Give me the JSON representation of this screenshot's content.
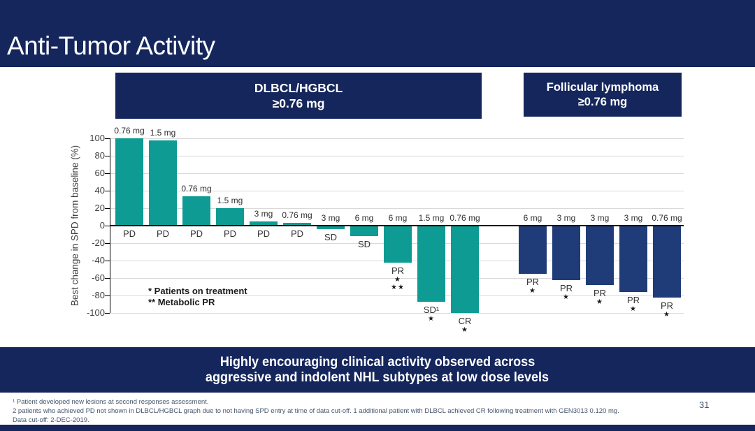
{
  "slide": {
    "title": "Anti-Tumor Activity",
    "page_number": "31"
  },
  "group_headers": [
    {
      "line1": "DLBCL/HGBCL",
      "line2": "≥0.76 mg"
    },
    {
      "line1": "Follicular lymphoma",
      "line2": "≥0.76 mg"
    }
  ],
  "legend": {
    "line1": "* Patients on treatment",
    "line2": "** Metabolic PR"
  },
  "banner": {
    "line1": "Highly encouraging clinical activity observed across",
    "line2": "aggressive and indolent NHL subtypes at low dose levels"
  },
  "footnotes": [
    "¹ Patient developed new lesions at second responses assessment.",
    "2 patients who achieved PD not shown in DLBCL/HGBCL graph due to not having SPD entry at time of data cut-off. 1 additional patient with DLBCL achieved CR following treatment with GEN3013 0.120 mg.",
    "Data cut-off: 2-DEC-2019."
  ],
  "colors": {
    "navy": "#15265C",
    "teal_bar": "#0D9B94",
    "navy_bar": "#1F3C78",
    "gridline": "#D9D9D9",
    "axis_text": "#404040"
  },
  "chart_data": {
    "type": "bar",
    "title": "",
    "xlabel": "",
    "ylabel": "Best change in SPD from baseline (%)",
    "ylim": [
      -100,
      100
    ],
    "yticks": [
      100,
      80,
      60,
      40,
      20,
      0,
      -20,
      -40,
      -60,
      -80,
      -100
    ],
    "grid": true,
    "legend_position": "bottom-left-inside",
    "series": [
      {
        "name": "DLBCL/HGBCL ≥0.76 mg",
        "color": "#0D9B94",
        "bars": [
          {
            "dose": "0.76 mg",
            "response": "PD",
            "value": 100,
            "markers": []
          },
          {
            "dose": "1.5 mg",
            "response": "PD",
            "value": 98,
            "markers": []
          },
          {
            "dose": "0.76 mg",
            "response": "PD",
            "value": 34,
            "markers": []
          },
          {
            "dose": "1.5 mg",
            "response": "PD",
            "value": 20,
            "markers": []
          },
          {
            "dose": "3 mg",
            "response": "PD",
            "value": 5,
            "markers": []
          },
          {
            "dose": "0.76 mg",
            "response": "PD",
            "value": 3,
            "markers": []
          },
          {
            "dose": "3 mg",
            "response": "SD",
            "value": -4,
            "markers": []
          },
          {
            "dose": "6 mg",
            "response": "SD",
            "value": -12,
            "markers": []
          },
          {
            "dose": "6 mg",
            "response": "PR",
            "value": -42,
            "markers": [
              "*",
              "**"
            ]
          },
          {
            "dose": "1.5 mg",
            "response": "SD¹",
            "value": -87,
            "markers": [
              "*"
            ]
          },
          {
            "dose": "0.76 mg",
            "response": "CR",
            "value": -100,
            "markers": [
              "*"
            ]
          }
        ]
      },
      {
        "name": "Follicular lymphoma ≥0.76 mg",
        "color": "#1F3C78",
        "bars": [
          {
            "dose": "6 mg",
            "response": "PR",
            "value": -55,
            "markers": [
              "*"
            ]
          },
          {
            "dose": "3 mg",
            "response": "PR",
            "value": -62,
            "markers": [
              "*"
            ]
          },
          {
            "dose": "3 mg",
            "response": "PR",
            "value": -68,
            "markers": [
              "*"
            ]
          },
          {
            "dose": "3 mg",
            "response": "PR",
            "value": -76,
            "markers": [
              "*"
            ]
          },
          {
            "dose": "0.76 mg",
            "response": "PR",
            "value": -82,
            "markers": [
              "*"
            ]
          }
        ]
      }
    ]
  }
}
